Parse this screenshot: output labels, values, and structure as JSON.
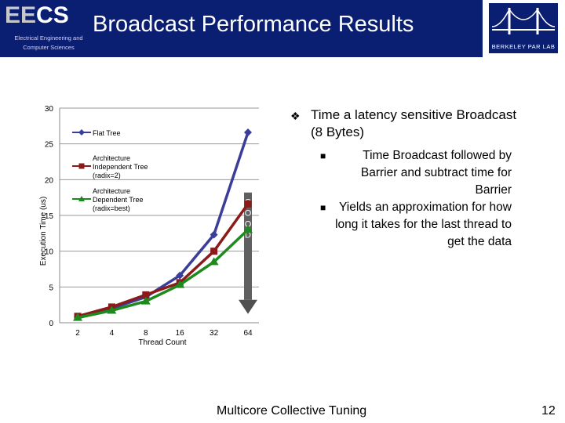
{
  "header": {
    "logo_main": "EE",
    "logo_accent": "CS",
    "logo_subtitle": "Electrical Engineering and Computer Sciences",
    "title": "Broadcast Performance Results",
    "berkeley_label": "BERKELEY PAR LAB",
    "colors": {
      "header_bg": "#0b1f72",
      "title": "#ffffff"
    }
  },
  "bullets": {
    "main": "Time a latency sensitive Broadcast (8 Bytes)",
    "subs": [
      "Time Broadcast followed by Barrier and subtract time for Barrier",
      "Yields an approximation for how long it takes for the last thread to get the data"
    ]
  },
  "chart_data": {
    "type": "line",
    "title": "",
    "xlabel": "Thread Count",
    "ylabel": "Execution Time (us)",
    "categories": [
      "2",
      "4",
      "8",
      "16",
      "32",
      "64"
    ],
    "ylim": [
      0,
      30
    ],
    "yticks": [
      "0",
      "5",
      "10",
      "15",
      "20",
      "25",
      "30"
    ],
    "series": [
      {
        "name": "Flat Tree",
        "color": "#3a3d99",
        "marker": "diamond",
        "values": [
          0.8,
          2.0,
          3.6,
          6.6,
          12.3,
          26.6
        ]
      },
      {
        "name": "Architecture Independent Tree (radix=2)",
        "color": "#8b1a1a",
        "marker": "square",
        "values": [
          0.9,
          2.2,
          3.9,
          5.6,
          10.0,
          16.6
        ]
      },
      {
        "name": "Architecture Dependent Tree (radix=best)",
        "color": "#1c8a1c",
        "marker": "triangle",
        "values": [
          0.7,
          1.7,
          3.0,
          5.3,
          8.5,
          13.0
        ]
      }
    ],
    "annotation": {
      "text": [
        "G",
        "O",
        "O",
        "D"
      ],
      "direction": "down"
    }
  },
  "footer": {
    "title": "Multicore Collective Tuning",
    "page": "12"
  }
}
